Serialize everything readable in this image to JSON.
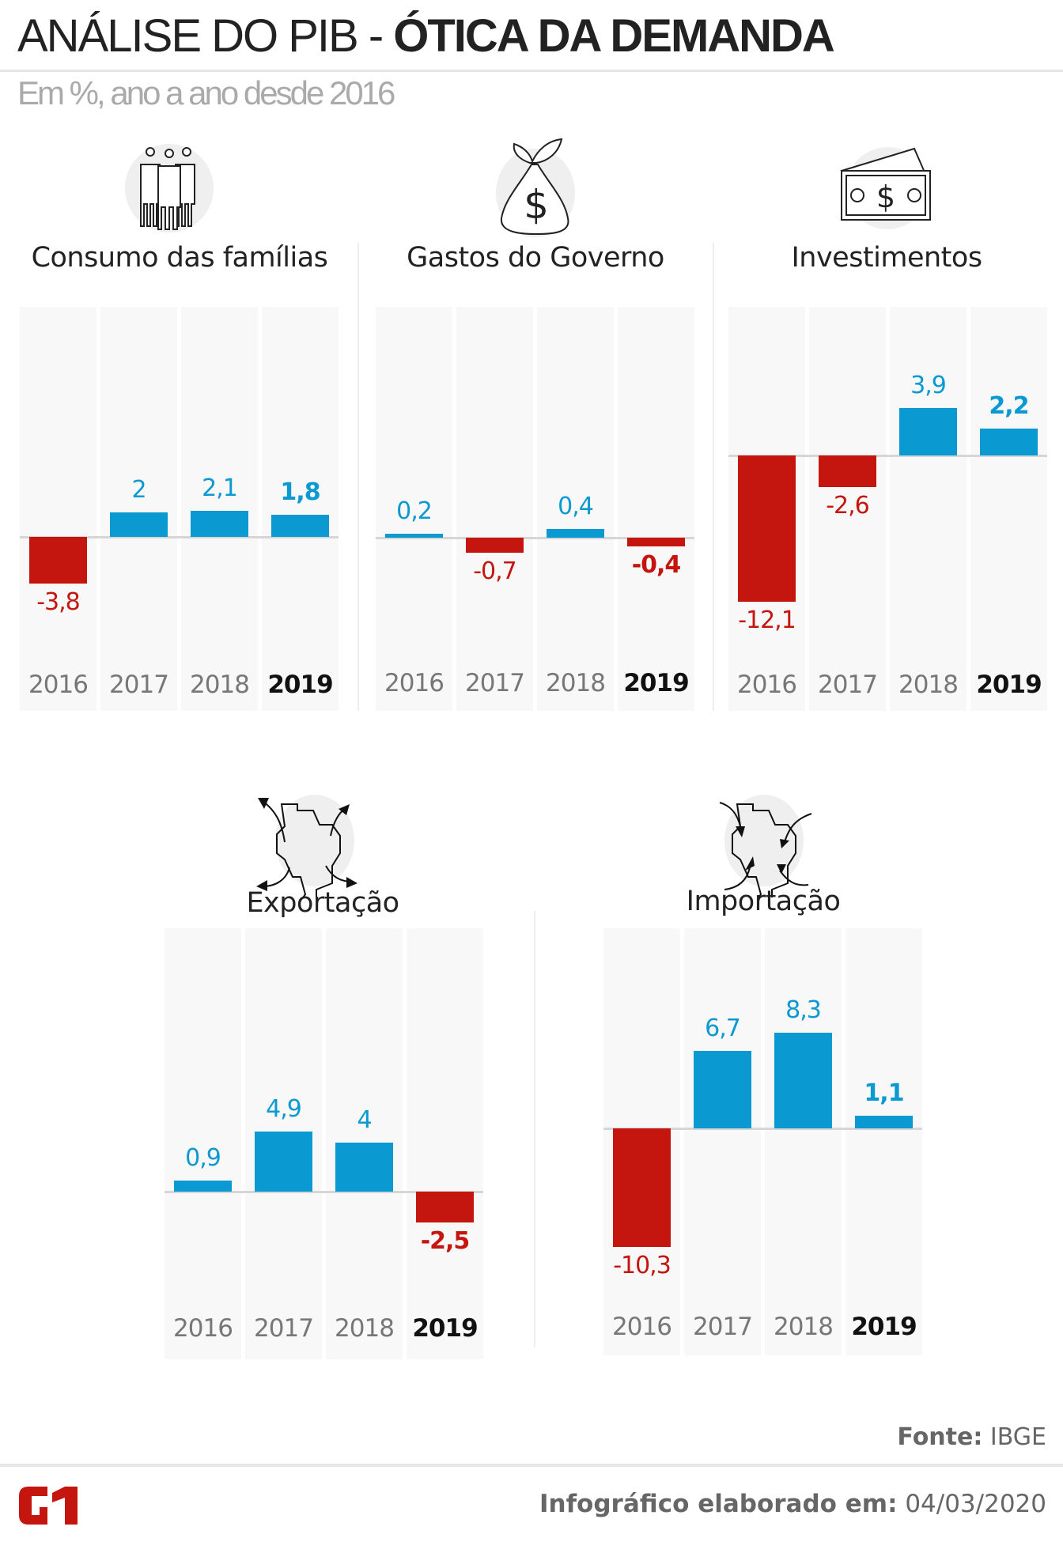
{
  "header": {
    "title_light": "ANÁLISE DO PIB - ",
    "title_bold": "ÓTICA DA DEMANDA",
    "subtitle": "Em %, ano a ano desde 2016"
  },
  "colors": {
    "positive": "#0a99d1",
    "negative": "#c4160f",
    "panel": "#f8f8f8"
  },
  "chart_data": [
    {
      "type": "bar",
      "title": "Consumo das famílias",
      "icon": "family-icon",
      "categories": [
        "2016",
        "2017",
        "2018",
        "2019"
      ],
      "values": [
        -3.8,
        2,
        2.1,
        1.8
      ],
      "labels": [
        "-3,8",
        "2",
        "2,1",
        "1,8"
      ],
      "highlight": "2019"
    },
    {
      "type": "bar",
      "title": "Gastos do Governo",
      "icon": "money-bag-icon",
      "categories": [
        "2016",
        "2017",
        "2018",
        "2019"
      ],
      "values": [
        0.2,
        -0.7,
        0.4,
        -0.4
      ],
      "labels": [
        "0,2",
        "-0,7",
        "0,4",
        "-0,4"
      ],
      "highlight": "2019"
    },
    {
      "type": "bar",
      "title": "Investimentos",
      "icon": "banknotes-icon",
      "categories": [
        "2016",
        "2017",
        "2018",
        "2019"
      ],
      "values": [
        -12.1,
        -2.6,
        3.9,
        2.2
      ],
      "labels": [
        "-12,1",
        "-2,6",
        "3,9",
        "2,2"
      ],
      "highlight": "2019"
    },
    {
      "type": "bar",
      "title": "Exportação",
      "icon": "brazil-export-icon",
      "categories": [
        "2016",
        "2017",
        "2018",
        "2019"
      ],
      "values": [
        0.9,
        4.9,
        4,
        -2.5
      ],
      "labels": [
        "0,9",
        "4,9",
        "4",
        "-2,5"
      ],
      "highlight": "2019"
    },
    {
      "type": "bar",
      "title": "Importação",
      "icon": "brazil-import-icon",
      "categories": [
        "2016",
        "2017",
        "2018",
        "2019"
      ],
      "values": [
        -10.3,
        6.7,
        8.3,
        1.1
      ],
      "labels": [
        "-10,3",
        "6,7",
        "8,3",
        "1,1"
      ],
      "highlight": "2019"
    }
  ],
  "footer": {
    "source_label": "Fonte:",
    "source_value": " IBGE",
    "made_label": "Infográfico elaborado em:",
    "made_value": " 04/03/2020",
    "logo": "G1"
  }
}
